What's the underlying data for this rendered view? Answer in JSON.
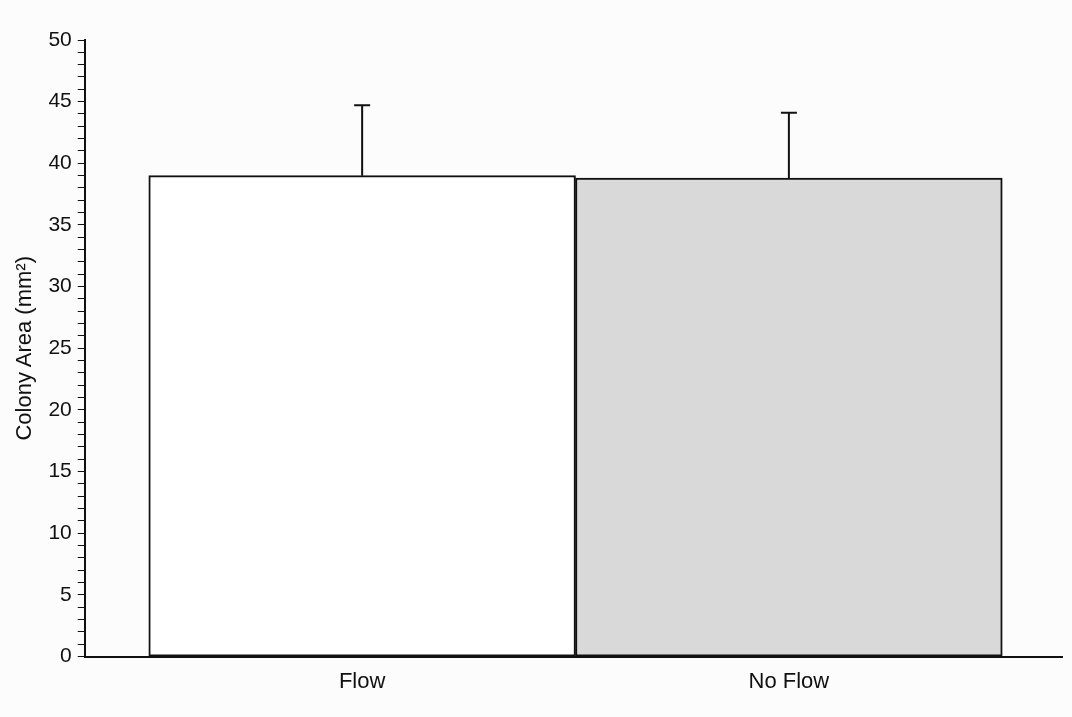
{
  "chart_data": {
    "type": "bar",
    "ylabel": "Colony Area (mm²)",
    "categories": [
      "Flow",
      "No Flow"
    ],
    "values": [
      39,
      38.8
    ],
    "colors": [
      "#ffffff",
      "#d9d9d9"
    ],
    "errors": [
      [
        39,
        44.7
      ],
      [
        38.8,
        44.1
      ]
    ],
    "ylim": [
      0,
      50
    ],
    "yticks": [
      0,
      {
        "value": 1,
        "label": null
      },
      {
        "value": 2,
        "label": null
      },
      {
        "value": 3,
        "label": null
      },
      {
        "value": 4,
        "label": null
      },
      5,
      {
        "value": 6,
        "label": null
      },
      {
        "value": 7,
        "label": null
      },
      {
        "value": 8,
        "label": null
      },
      {
        "value": 9,
        "label": null
      },
      10,
      {
        "value": 11,
        "label": null
      },
      {
        "value": 12,
        "label": null
      },
      {
        "value": 13,
        "label": null
      },
      {
        "value": 14,
        "label": null
      },
      15,
      {
        "value": 16,
        "label": null
      },
      {
        "value": 17,
        "label": null
      },
      {
        "value": 18,
        "label": null
      },
      {
        "value": 19,
        "label": null
      },
      20,
      {
        "value": 21,
        "label": null
      },
      {
        "value": 22,
        "label": null
      },
      {
        "value": 23,
        "label": null
      },
      {
        "value": 24,
        "label": null
      },
      25,
      {
        "value": 26,
        "label": null
      },
      {
        "value": 27,
        "label": null
      },
      {
        "value": 28,
        "label": null
      },
      {
        "value": 29,
        "label": null
      },
      30,
      {
        "value": 31,
        "label": null
      },
      {
        "value": 32,
        "label": null
      },
      {
        "value": 33,
        "label": null
      },
      {
        "value": 34,
        "label": null
      },
      35,
      {
        "value": 36,
        "label": null
      },
      {
        "value": 37,
        "label": null
      },
      {
        "value": 38,
        "label": null
      },
      {
        "value": 39,
        "label": null
      },
      40,
      {
        "value": 41,
        "label": null
      },
      {
        "value": 42,
        "label": null
      },
      {
        "value": 43,
        "label": null
      },
      {
        "value": 44,
        "label": null
      },
      45,
      {
        "value": 46,
        "label": null
      },
      {
        "value": 47,
        "label": null
      },
      {
        "value": 48,
        "label": null
      },
      {
        "value": 49,
        "label": null
      },
      50
    ],
    "grid": false,
    "legend": false
  }
}
